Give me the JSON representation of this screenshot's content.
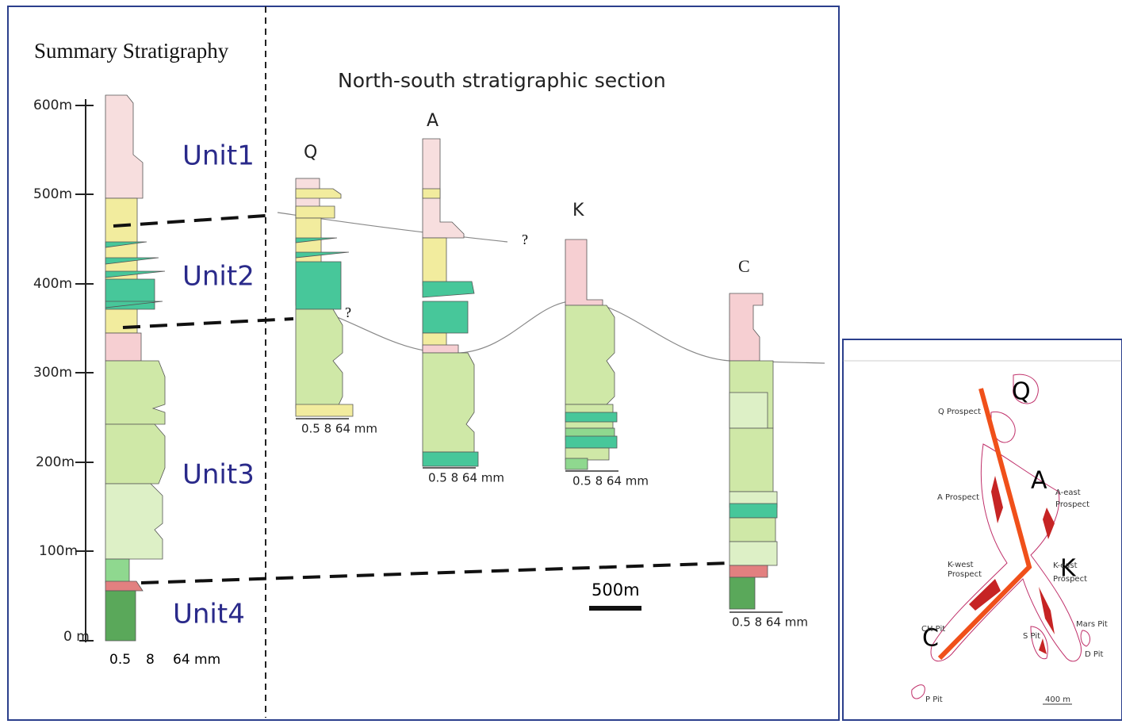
{
  "summary": {
    "title": "Summary Stratigraphy",
    "depth_labels": [
      "600m",
      "500m",
      "400m",
      "300m",
      "200m",
      "100m",
      "0 m"
    ],
    "grain_labels": [
      "0.5",
      "8",
      "64 mm"
    ],
    "units": [
      "Unit1",
      "Unit2",
      "Unit3",
      "Unit4"
    ]
  },
  "section": {
    "title": "North-south stratigraphic section",
    "columns": [
      {
        "label": "Q",
        "grain_label": "0.5 8 64 mm"
      },
      {
        "label": "A",
        "grain_label": "0.5 8 64 mm"
      },
      {
        "label": "K",
        "grain_label": "0.5 8 64 mm"
      },
      {
        "label": "C",
        "grain_label": "0.5 8 64 mm"
      }
    ],
    "uncertain": [
      "?",
      "?"
    ],
    "scale_bar": "500m"
  },
  "map": {
    "letters": [
      "Q",
      "A",
      "K",
      "C"
    ],
    "labels": [
      [
        "Q Prospect"
      ],
      [
        "A Prospect"
      ],
      [
        "A-east",
        "Prospect"
      ],
      [
        "K-west",
        "Prospect"
      ],
      [
        "K-east",
        "Prospect"
      ],
      [
        "Mars Pit"
      ],
      [
        "S Pit"
      ],
      [
        "D Pit"
      ],
      [
        "CH Pit"
      ],
      [
        "P Pit"
      ],
      [
        "400 m"
      ]
    ]
  }
}
